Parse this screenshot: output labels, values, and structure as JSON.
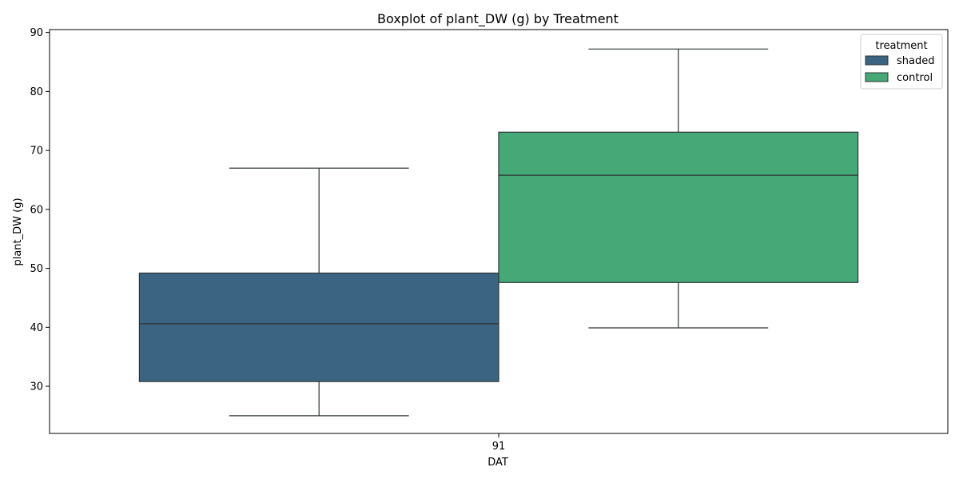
{
  "chart_data": {
    "type": "box",
    "title": "Boxplot of plant_DW (g) by Treatment",
    "xlabel": "DAT",
    "ylabel": "plant_DW (g)",
    "categories": [
      "91"
    ],
    "ylim": [
      22,
      90.5
    ],
    "yticks": [
      30,
      40,
      50,
      60,
      70,
      80,
      90
    ],
    "grid": false,
    "legend": {
      "title": "treatment",
      "placement": "top-right"
    },
    "series": [
      {
        "name": "shaded",
        "color": "#3b6482",
        "stats": {
          "whisker_low": 25.0,
          "q1": 30.8,
          "median": 40.6,
          "q3": 49.2,
          "whisker_high": 67.0
        }
      },
      {
        "name": "control",
        "color": "#45a876",
        "stats": {
          "whisker_low": 39.9,
          "q1": 47.6,
          "median": 65.8,
          "q3": 73.1,
          "whisker_high": 87.2
        }
      }
    ]
  }
}
